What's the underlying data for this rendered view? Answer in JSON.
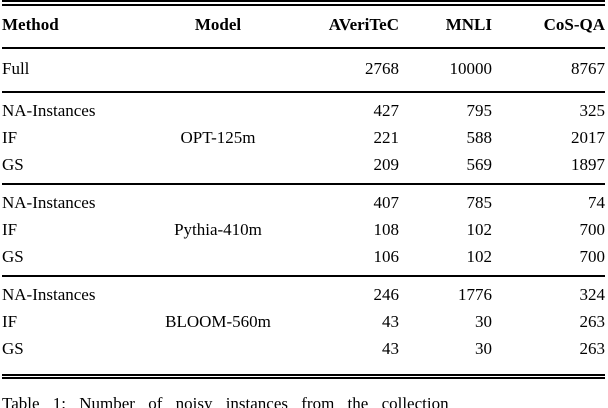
{
  "table": {
    "columns": [
      "Method",
      "Model",
      "AVeriTeC",
      "MNLI",
      "CoS-QA"
    ],
    "full_row": {
      "method": "Full",
      "model": "",
      "values": [
        "2768",
        "10000",
        "8767"
      ]
    },
    "groups": [
      {
        "model": "OPT-125m",
        "rows": [
          {
            "method": "NA-Instances",
            "values": [
              "427",
              "795",
              "325"
            ]
          },
          {
            "method": "IF",
            "values": [
              "221",
              "588",
              "2017"
            ]
          },
          {
            "method": "GS",
            "values": [
              "209",
              "569",
              "1897"
            ]
          }
        ]
      },
      {
        "model": "Pythia-410m",
        "rows": [
          {
            "method": "NA-Instances",
            "values": [
              "407",
              "785",
              "74"
            ]
          },
          {
            "method": "IF",
            "values": [
              "108",
              "102",
              "700"
            ]
          },
          {
            "method": "GS",
            "values": [
              "106",
              "102",
              "700"
            ]
          }
        ]
      },
      {
        "model": "BLOOM-560m",
        "rows": [
          {
            "method": "NA-Instances",
            "values": [
              "246",
              "1776",
              "324"
            ]
          },
          {
            "method": "IF",
            "values": [
              "43",
              "30",
              "263"
            ]
          },
          {
            "method": "GS",
            "values": [
              "43",
              "30",
              "263"
            ]
          }
        ]
      }
    ]
  },
  "caption": "Table 1: Number of noisy instances from the collection",
  "colors": {
    "text": "#000000",
    "background": "#ffffff",
    "rule": "#000000"
  }
}
